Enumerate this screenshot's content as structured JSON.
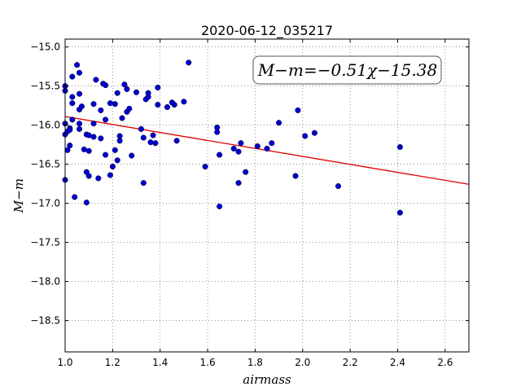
{
  "chart_data": {
    "type": "scatter",
    "title": "2020-06-12_035217",
    "xlabel": "airmass",
    "ylabel": "M−m",
    "xlim": [
      1.0,
      2.7
    ],
    "ylim": [
      -18.9,
      -14.9
    ],
    "y_inverted": true,
    "grid": true,
    "x_ticks": [
      1.0,
      1.2,
      1.4,
      1.6,
      1.8,
      2.0,
      2.2,
      2.4,
      2.6
    ],
    "x_tick_labels": [
      "1.0",
      "1.2",
      "1.4",
      "1.6",
      "1.8",
      "2.0",
      "2.2",
      "2.4",
      "2.6"
    ],
    "y_ticks": [
      -15.0,
      -15.5,
      -16.0,
      -16.5,
      -17.0,
      -17.5,
      -18.0,
      -18.5
    ],
    "y_tick_labels": [
      "−15.0",
      "−15.5",
      "−16.0",
      "−16.5",
      "−17.0",
      "−17.5",
      "−18.0",
      "−18.5"
    ],
    "annotation": "M−m=−0.51χ−15.38",
    "fit": {
      "slope": -0.51,
      "intercept": -15.38,
      "color": "#dd0000"
    },
    "point_color": "#0000cc",
    "points": [
      [
        1.0,
        -15.5
      ],
      [
        1.0,
        -15.56
      ],
      [
        1.0,
        -15.98
      ],
      [
        1.0,
        -16.12
      ],
      [
        1.0,
        -16.7
      ],
      [
        1.01,
        -16.08
      ],
      [
        1.01,
        -16.32
      ],
      [
        1.02,
        -16.26
      ],
      [
        1.02,
        -16.04
      ],
      [
        1.02,
        -16.06
      ],
      [
        1.03,
        -15.64
      ],
      [
        1.03,
        -15.72
      ],
      [
        1.03,
        -15.38
      ],
      [
        1.03,
        -15.93
      ],
      [
        1.04,
        -16.92
      ],
      [
        1.05,
        -15.23
      ],
      [
        1.06,
        -15.33
      ],
      [
        1.06,
        -15.6
      ],
      [
        1.06,
        -15.8
      ],
      [
        1.06,
        -15.98
      ],
      [
        1.06,
        -16.05
      ],
      [
        1.07,
        -15.76
      ],
      [
        1.08,
        -16.31
      ],
      [
        1.09,
        -16.12
      ],
      [
        1.09,
        -16.6
      ],
      [
        1.09,
        -16.99
      ],
      [
        1.1,
        -16.65
      ],
      [
        1.1,
        -16.13
      ],
      [
        1.1,
        -16.33
      ],
      [
        1.12,
        -16.15
      ],
      [
        1.12,
        -15.73
      ],
      [
        1.12,
        -15.98
      ],
      [
        1.13,
        -15.42
      ],
      [
        1.14,
        -16.68
      ],
      [
        1.15,
        -15.81
      ],
      [
        1.15,
        -16.17
      ],
      [
        1.16,
        -15.47
      ],
      [
        1.17,
        -15.49
      ],
      [
        1.17,
        -15.93
      ],
      [
        1.17,
        -16.38
      ],
      [
        1.19,
        -15.72
      ],
      [
        1.19,
        -16.64
      ],
      [
        1.2,
        -16.53
      ],
      [
        1.21,
        -15.73
      ],
      [
        1.21,
        -16.32
      ],
      [
        1.22,
        -15.59
      ],
      [
        1.22,
        -16.45
      ],
      [
        1.23,
        -16.14
      ],
      [
        1.23,
        -16.2
      ],
      [
        1.24,
        -15.91
      ],
      [
        1.25,
        -15.48
      ],
      [
        1.26,
        -15.83
      ],
      [
        1.26,
        -15.54
      ],
      [
        1.27,
        -15.79
      ],
      [
        1.28,
        -16.39
      ],
      [
        1.3,
        -15.58
      ],
      [
        1.32,
        -16.05
      ],
      [
        1.33,
        -16.16
      ],
      [
        1.33,
        -16.74
      ],
      [
        1.34,
        -15.67
      ],
      [
        1.35,
        -15.64
      ],
      [
        1.35,
        -15.59
      ],
      [
        1.36,
        -16.22
      ],
      [
        1.37,
        -16.13
      ],
      [
        1.38,
        -16.23
      ],
      [
        1.39,
        -15.52
      ],
      [
        1.39,
        -15.74
      ],
      [
        1.43,
        -15.77
      ],
      [
        1.45,
        -15.71
      ],
      [
        1.46,
        -15.74
      ],
      [
        1.47,
        -16.2
      ],
      [
        1.5,
        -15.7
      ],
      [
        1.52,
        -15.2
      ],
      [
        1.59,
        -16.53
      ],
      [
        1.64,
        -16.03
      ],
      [
        1.64,
        -16.09
      ],
      [
        1.65,
        -16.38
      ],
      [
        1.65,
        -17.04
      ],
      [
        1.71,
        -16.3
      ],
      [
        1.73,
        -16.34
      ],
      [
        1.73,
        -16.74
      ],
      [
        1.74,
        -16.23
      ],
      [
        1.76,
        -16.6
      ],
      [
        1.81,
        -16.27
      ],
      [
        1.85,
        -16.3
      ],
      [
        1.87,
        -16.23
      ],
      [
        1.9,
        -15.97
      ],
      [
        1.97,
        -16.65
      ],
      [
        1.98,
        -15.81
      ],
      [
        2.01,
        -16.14
      ],
      [
        2.05,
        -16.1
      ],
      [
        2.15,
        -16.78
      ],
      [
        2.41,
        -16.28
      ],
      [
        2.41,
        -17.12
      ]
    ]
  }
}
